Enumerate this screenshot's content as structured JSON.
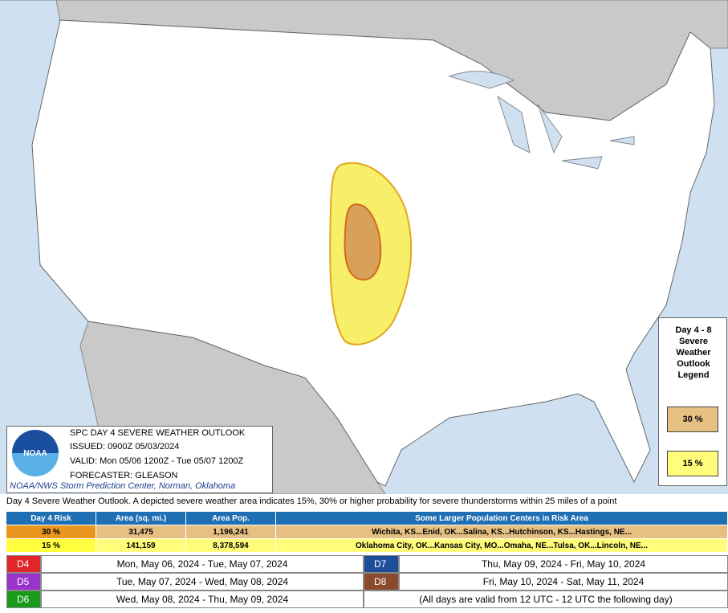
{
  "outlook_box": {
    "title": "SPC DAY 4 SEVERE WEATHER OUTLOOK",
    "issued": "ISSUED: 0900Z 05/03/2024",
    "valid": "VALID: Mon 05/06 1200Z - Tue 05/07 1200Z",
    "forecaster": "FORECASTER: GLEASON",
    "credit": "NOAA/NWS Storm Prediction Center, Norman, Oklahoma",
    "logo": "NOAA"
  },
  "legend": {
    "title": "Day 4 - 8 Severe Weather Outlook Legend",
    "items": [
      "30 %",
      "15 %"
    ]
  },
  "description": "Day 4 Severe Weather Outlook. A depicted severe weather area indicates 15%, 30% or higher probability for severe thunderstorms within 25 miles of a point",
  "risk_table": {
    "columns": [
      "Day 4 Risk",
      "Area (sq. mi.)",
      "Area Pop.",
      "Some Larger Population Centers in Risk Area"
    ],
    "rows": [
      [
        "30 %",
        "31,475",
        "1,196,241",
        "Wichita, KS...Enid, OK...Salina, KS...Hutchinson, KS...Hastings, NE..."
      ],
      [
        "15 %",
        "141,159",
        "8,378,594",
        "Oklahoma City, OK...Kansas City, MO...Omaha, NE...Tulsa, OK...Lincoln, NE..."
      ]
    ]
  },
  "days": [
    {
      "label": "D4",
      "dates": "Mon, May 06, 2024 - Tue, May 07, 2024"
    },
    {
      "label": "D5",
      "dates": "Tue, May 07, 2024 - Wed, May 08, 2024"
    },
    {
      "label": "D6",
      "dates": "Wed, May 08, 2024 - Thu, May 09, 2024"
    },
    {
      "label": "D7",
      "dates": "Thu, May 09, 2024 - Fri, May 10, 2024"
    },
    {
      "label": "D8",
      "dates": "Fri, May 10, 2024 - Sat, May 11, 2024"
    }
  ],
  "days_note": "(All days are valid from 12 UTC - 12 UTC the following day)"
}
